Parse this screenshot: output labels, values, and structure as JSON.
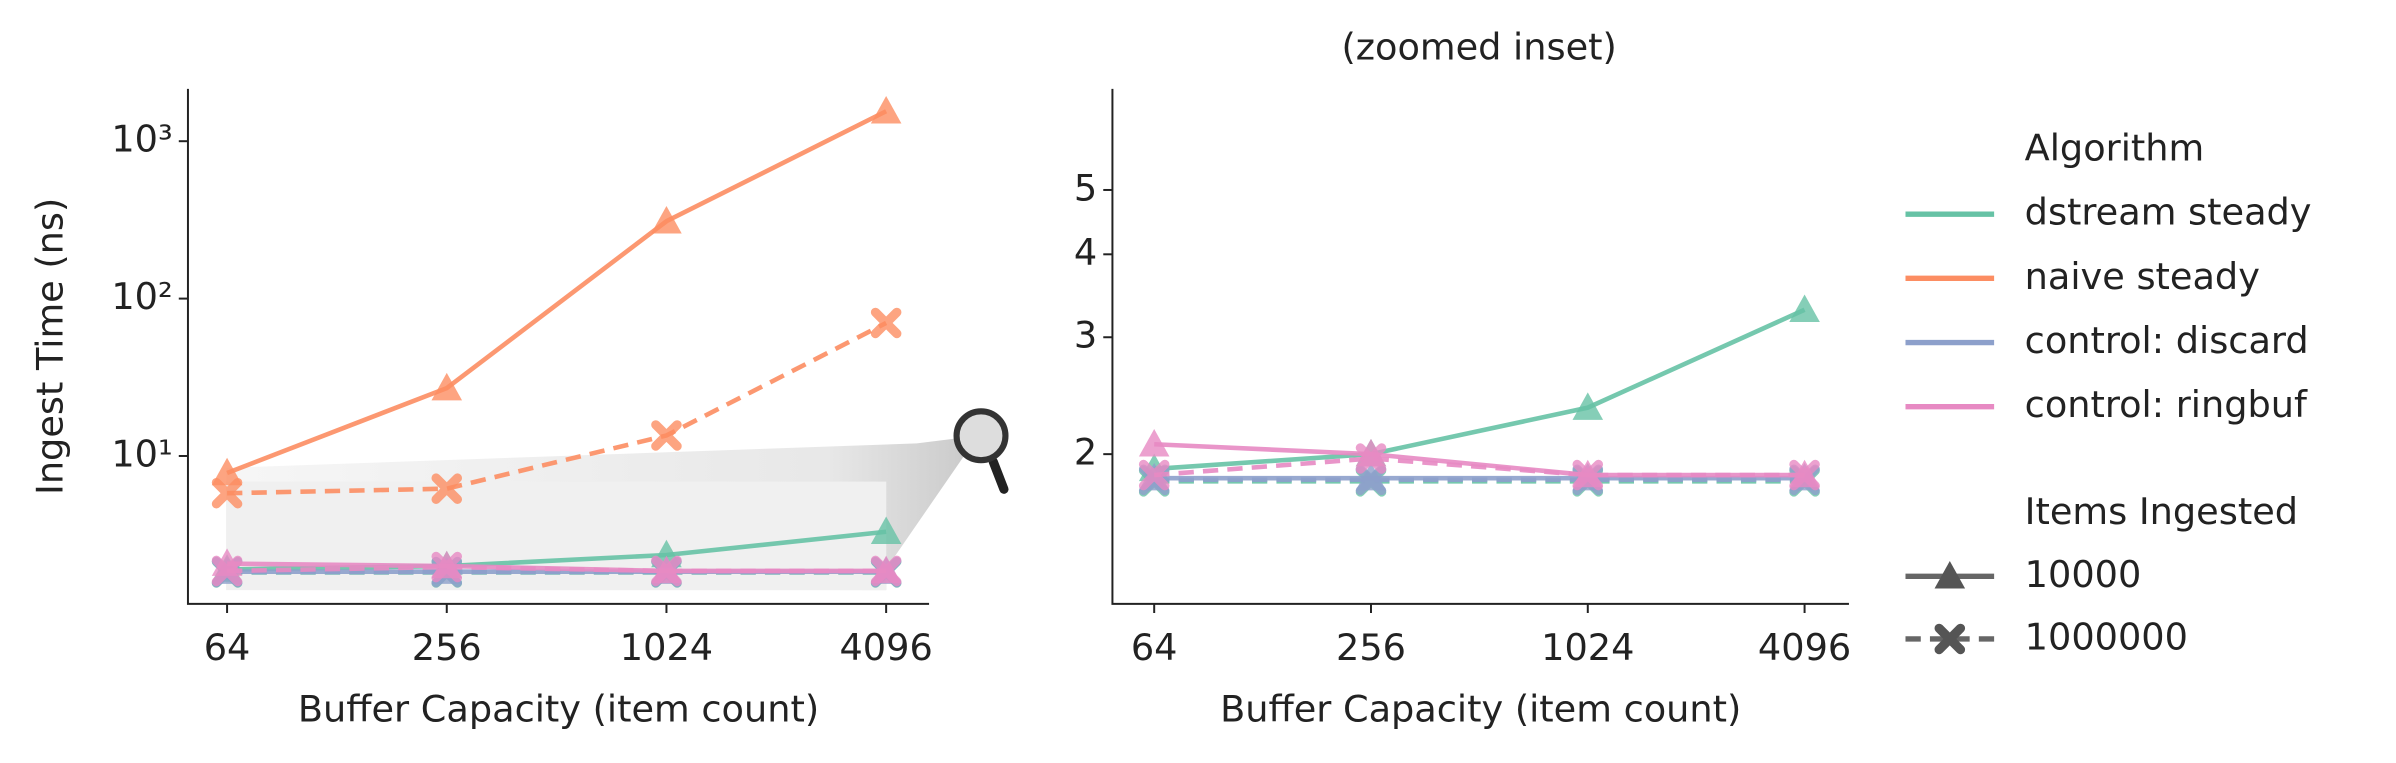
{
  "legend": {
    "algorithm_title": "Algorithm",
    "algorithms": [
      {
        "name": "dstream steady",
        "color": "#66c2a5"
      },
      {
        "name": "naive steady",
        "color": "#fc8d62"
      },
      {
        "name": "control: discard",
        "color": "#8da0cb"
      },
      {
        "name": "control: ringbuf",
        "color": "#e78ac3"
      }
    ],
    "items_title": "Items Ingested",
    "items": [
      {
        "label": 10000,
        "marker": "triangle",
        "dashed": false
      },
      {
        "label": 1000000,
        "marker": "x",
        "dashed": true
      }
    ]
  },
  "chart_data": [
    {
      "type": "line",
      "xlabel": "Buffer Capacity (item count)",
      "ylabel": "Ingest Time (ns)",
      "log_x": true,
      "log_y": true,
      "x": [
        64,
        256,
        1024,
        4096
      ],
      "xlim": [
        50,
        5370
      ],
      "xticks": [
        64,
        256,
        1024,
        4096
      ],
      "ylim": [
        1.15,
        2150
      ],
      "yticks": [
        {
          "value": 10,
          "label": "10¹"
        },
        {
          "value": 100,
          "label": "10²"
        },
        {
          "value": 1000,
          "label": "10³"
        }
      ],
      "series": [
        {
          "algorithm": 1,
          "items": 0,
          "values": [
            7.8,
            27,
            310,
            1550
          ]
        },
        {
          "algorithm": 1,
          "items": 1,
          "values": [
            5.8,
            6.2,
            13.5,
            70
          ]
        },
        {
          "algorithm": 0,
          "items": 0,
          "values": [
            1.9,
            2.0,
            2.35,
            3.3
          ]
        },
        {
          "algorithm": 0,
          "items": 1,
          "values": [
            1.82,
            1.82,
            1.82,
            1.82
          ]
        },
        {
          "algorithm": 2,
          "items": 0,
          "values": [
            1.84,
            1.84,
            1.84,
            1.84
          ]
        },
        {
          "algorithm": 2,
          "items": 1,
          "values": [
            1.83,
            1.83,
            1.83,
            1.83
          ]
        },
        {
          "algorithm": 3,
          "items": 0,
          "values": [
            2.07,
            2.0,
            1.86,
            1.86
          ]
        },
        {
          "algorithm": 3,
          "items": 1,
          "values": [
            1.86,
            1.97,
            1.86,
            1.86
          ]
        }
      ]
    },
    {
      "type": "line",
      "title": "(zoomed inset)",
      "xlabel": "Buffer Capacity (item count)",
      "log_x": true,
      "log_y": true,
      "x": [
        64,
        256,
        1024,
        4096
      ],
      "xlim": [
        49,
        5440
      ],
      "xticks": [
        64,
        256,
        1024,
        4096
      ],
      "ylim": [
        1.19,
        7.1
      ],
      "yticks": [
        2,
        3,
        4,
        5
      ],
      "series": [
        {
          "algorithm": 0,
          "items": 0,
          "values": [
            1.9,
            2.0,
            2.35,
            3.3
          ]
        },
        {
          "algorithm": 0,
          "items": 1,
          "values": [
            1.82,
            1.82,
            1.82,
            1.82
          ]
        },
        {
          "algorithm": 2,
          "items": 0,
          "values": [
            1.84,
            1.84,
            1.84,
            1.84
          ]
        },
        {
          "algorithm": 2,
          "items": 1,
          "values": [
            1.83,
            1.83,
            1.83,
            1.83
          ]
        },
        {
          "algorithm": 3,
          "items": 0,
          "values": [
            2.07,
            2.0,
            1.86,
            1.86
          ]
        },
        {
          "algorithm": 3,
          "items": 1,
          "values": [
            1.86,
            1.97,
            1.86,
            1.86
          ]
        }
      ]
    }
  ]
}
